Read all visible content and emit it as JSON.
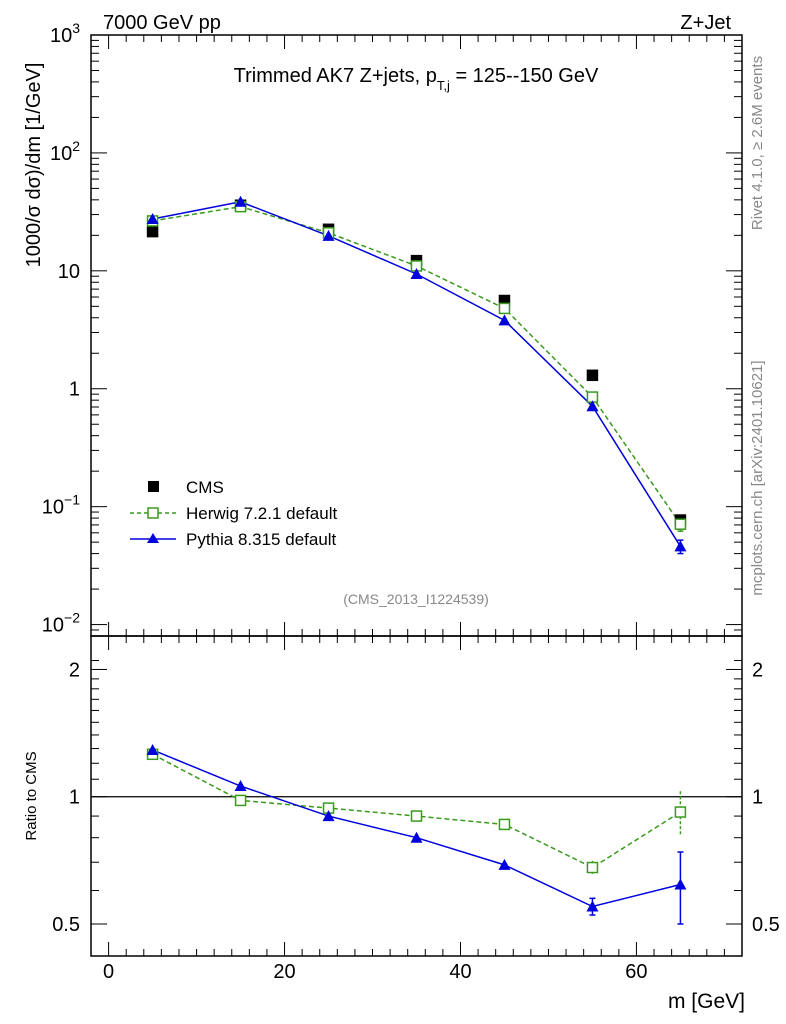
{
  "header": {
    "energy_label": "7000 GeV pp",
    "process_label": "Z+Jet"
  },
  "side_labels": {
    "rivet": "Rivet 4.1.0, ≥ 2.6M events",
    "mcplots": "mcplots.cern.ch [arXiv:2401.10621]"
  },
  "colors": {
    "cms": "#000000",
    "herwig": "#3a9a1e",
    "pythia": "#0000dd"
  },
  "chart_data": [
    {
      "type": "scatter",
      "panel": "main",
      "title_prefix": "Trimmed AK7 Z+jets, p",
      "title_sub": "T,j",
      "title_suffix": " = 125--150 GeV",
      "ylabel": "1000/σ  dσ)/dm [1/GeV]",
      "yscale": "log",
      "ylim": [
        0.008,
        1000
      ],
      "xlim": [
        -2,
        72
      ],
      "analysis_id": "(CMS_2013_I1224539)",
      "ytick_labels": [
        {
          "value": 1000,
          "base": "10",
          "exp": "3"
        },
        {
          "value": 100,
          "base": "10",
          "exp": "2"
        },
        {
          "value": 10,
          "base": "10",
          "exp": ""
        },
        {
          "value": 1,
          "base": "1",
          "exp": ""
        },
        {
          "value": 0.1,
          "base": "10",
          "exp": "−1"
        },
        {
          "value": 0.01,
          "base": "10",
          "exp": "−2"
        }
      ],
      "x": [
        5,
        15,
        25,
        35,
        45,
        55,
        65
      ],
      "series": [
        {
          "name": "CMS",
          "legend": "CMS",
          "marker": "square-filled",
          "values": [
            21.5,
            36.0,
            22.5,
            12.2,
            5.6,
            1.3,
            0.077
          ]
        },
        {
          "name": "Herwig",
          "legend": "Herwig 7.2.1 default",
          "marker": "square-open",
          "line": "dashed",
          "values": [
            26.5,
            35.0,
            21.0,
            11.0,
            4.8,
            0.85,
            0.071
          ],
          "errors": [
            0,
            0,
            0,
            0,
            0,
            0,
            0.009
          ]
        },
        {
          "name": "Pythia",
          "legend": "Pythia 8.315 default",
          "marker": "triangle-filled",
          "line": "solid",
          "values": [
            27.5,
            38.5,
            19.8,
            9.4,
            3.8,
            0.71,
            0.046
          ],
          "errors": [
            0,
            0,
            0,
            0,
            0,
            0,
            0.006
          ]
        }
      ]
    },
    {
      "type": "scatter",
      "panel": "ratio",
      "ylabel": "Ratio to CMS",
      "xlabel": "m [GeV]",
      "yscale": "log",
      "ylim": [
        0.42,
        2.4
      ],
      "xlim": [
        -2,
        72
      ],
      "xtick_labels": [
        "0",
        "20",
        "40",
        "60"
      ],
      "xticks": [
        0,
        20,
        40,
        60
      ],
      "ytick_labels": [
        "2",
        "1",
        "0.5"
      ],
      "yticks": [
        2,
        1,
        0.5
      ],
      "x": [
        5,
        15,
        25,
        35,
        45,
        55,
        65
      ],
      "series": [
        {
          "name": "Herwig",
          "values": [
            1.26,
            0.98,
            0.94,
            0.9,
            0.86,
            0.68,
            0.92
          ],
          "errors": [
            0,
            0,
            0,
            0,
            0,
            0.025,
            0.11
          ]
        },
        {
          "name": "Pythia",
          "values": [
            1.29,
            1.06,
            0.9,
            0.8,
            0.69,
            0.55,
            0.62
          ],
          "errors": [
            0,
            0,
            0,
            0,
            0,
            0.025,
            0.12
          ]
        }
      ]
    }
  ]
}
